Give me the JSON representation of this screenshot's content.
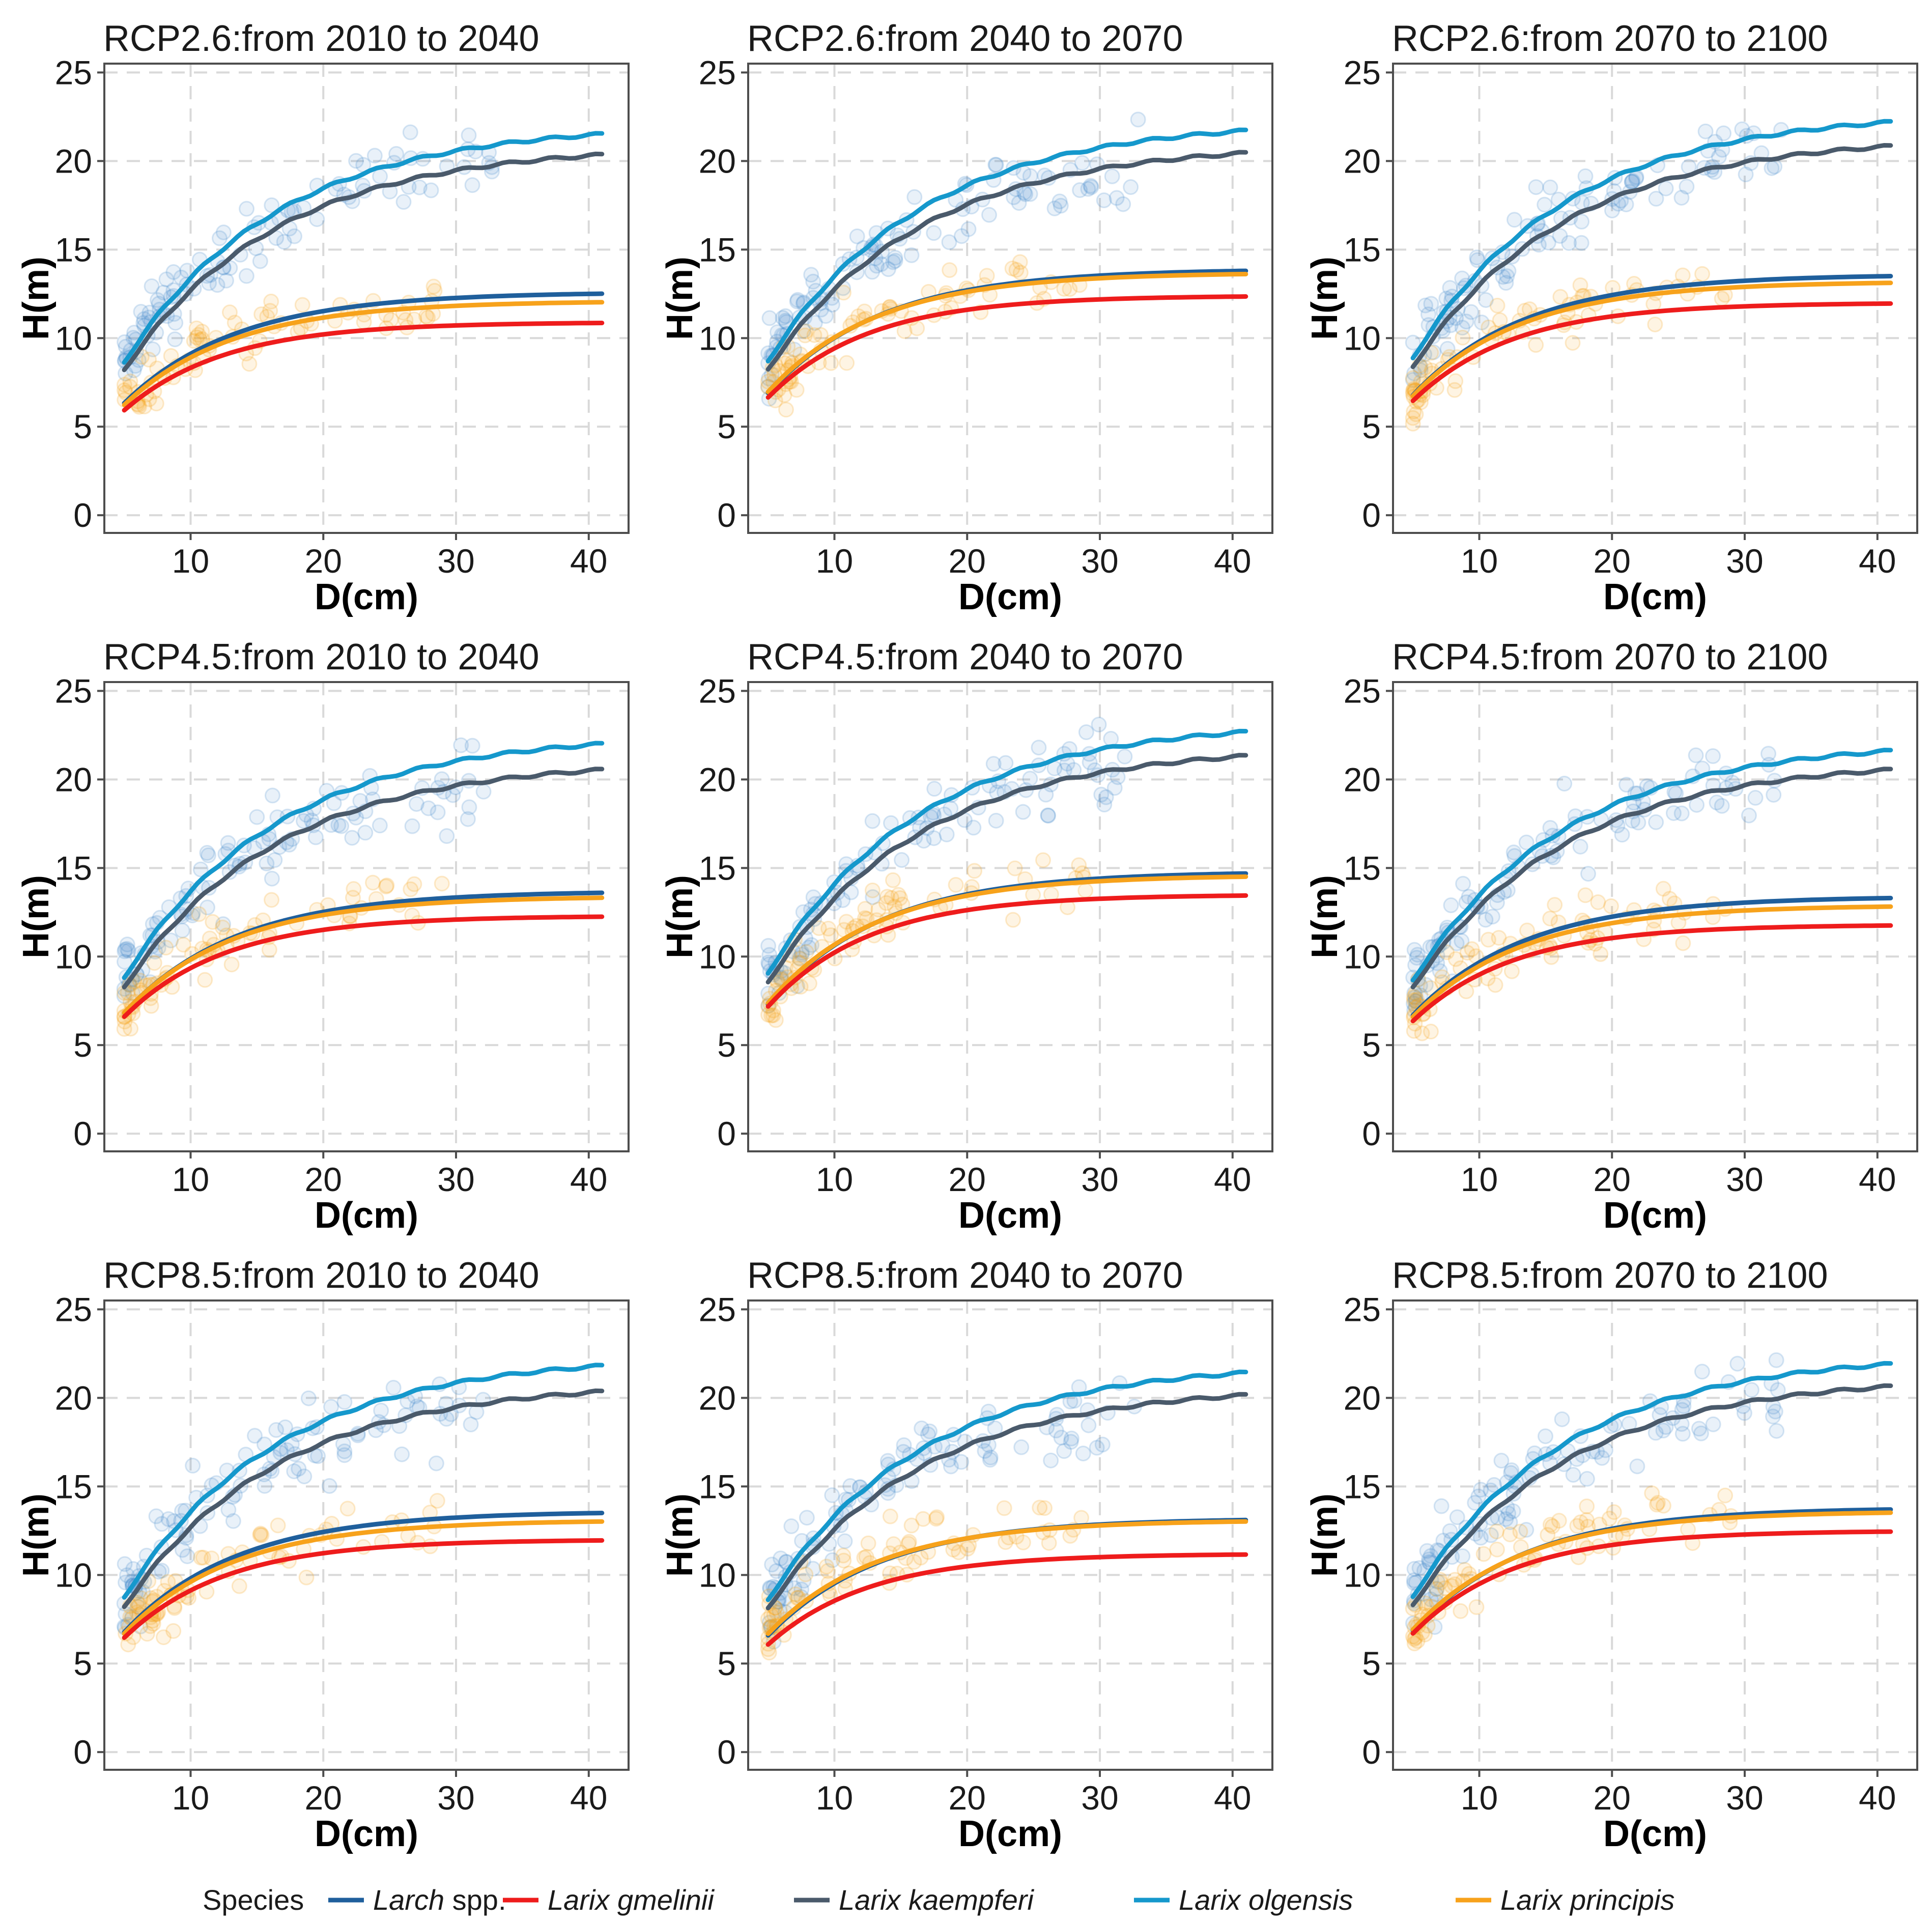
{
  "legend": {
    "title": "Species",
    "items": [
      {
        "key": "larch",
        "label": "Larch",
        "suffix": " spp.",
        "italic_label": true,
        "color": "#1f5f9c"
      },
      {
        "key": "gmelinii",
        "label": "Larix gmelinii",
        "suffix": "",
        "italic_label": true,
        "color": "#ee1c1c"
      },
      {
        "key": "kaempferi",
        "label": "Larix kaempferi",
        "suffix": "",
        "italic_label": true,
        "color": "#4a5a6b"
      },
      {
        "key": "olgensis",
        "label": "Larix olgensis",
        "suffix": "",
        "italic_label": true,
        "color": "#1598cc"
      },
      {
        "key": "principis",
        "label": "Larix principis",
        "suffix": "",
        "italic_label": true,
        "color": "#f7a21b"
      }
    ]
  },
  "chart_data": [
    {
      "type": "line",
      "title": "RCP2.6:from 2010 to 2040",
      "xlabel": "D(cm)",
      "ylabel": "H(m)",
      "xlim": [
        3.5,
        43
      ],
      "ylim": [
        -1,
        25.5
      ],
      "xticks": [
        10,
        20,
        30,
        40
      ],
      "yticks": [
        0,
        5,
        10,
        15,
        20,
        25
      ],
      "grid": true,
      "asymptotes": {
        "olgensis": 22.1,
        "kaempferi": 20.9,
        "larch": 12.6,
        "principis": 12.1,
        "gmelinii": 10.9
      }
    },
    {
      "type": "line",
      "title": "RCP2.6:from 2040 to 2070",
      "xlabel": "D(cm)",
      "ylabel": "H(m)",
      "xlim": [
        3.5,
        43
      ],
      "ylim": [
        -1,
        25.5
      ],
      "xticks": [
        10,
        20,
        30,
        40
      ],
      "yticks": [
        0,
        5,
        10,
        15,
        20,
        25
      ],
      "grid": true,
      "asymptotes": {
        "olgensis": 22.3,
        "kaempferi": 21.0,
        "larch": 13.9,
        "principis": 13.7,
        "gmelinii": 12.4
      }
    },
    {
      "type": "line",
      "title": "RCP2.6:from 2070 to 2100",
      "xlabel": "D(cm)",
      "ylabel": "H(m)",
      "xlim": [
        3.5,
        43
      ],
      "ylim": [
        -1,
        25.5
      ],
      "xticks": [
        10,
        20,
        30,
        40
      ],
      "yticks": [
        0,
        5,
        10,
        15,
        20,
        25
      ],
      "grid": true,
      "asymptotes": {
        "olgensis": 22.8,
        "kaempferi": 21.4,
        "larch": 13.6,
        "principis": 13.2,
        "gmelinii": 12.0
      }
    },
    {
      "type": "line",
      "title": "RCP4.5:from 2010 to 2040",
      "xlabel": "D(cm)",
      "ylabel": "H(m)",
      "xlim": [
        3.5,
        43
      ],
      "ylim": [
        -1,
        25.5
      ],
      "xticks": [
        10,
        20,
        30,
        40
      ],
      "yticks": [
        0,
        5,
        10,
        15,
        20,
        25
      ],
      "grid": true,
      "asymptotes": {
        "olgensis": 22.6,
        "kaempferi": 21.1,
        "larch": 13.7,
        "principis": 13.4,
        "gmelinii": 12.3
      }
    },
    {
      "type": "line",
      "title": "RCP4.5:from 2040 to 2070",
      "xlabel": "D(cm)",
      "ylabel": "H(m)",
      "xlim": [
        3.5,
        43
      ],
      "ylim": [
        -1,
        25.5
      ],
      "xticks": [
        10,
        20,
        30,
        40
      ],
      "yticks": [
        0,
        5,
        10,
        15,
        20,
        25
      ],
      "grid": true,
      "asymptotes": {
        "olgensis": 23.3,
        "kaempferi": 21.9,
        "larch": 14.8,
        "principis": 14.6,
        "gmelinii": 13.5
      }
    },
    {
      "type": "line",
      "title": "RCP4.5:from 2070 to 2100",
      "xlabel": "D(cm)",
      "ylabel": "H(m)",
      "xlim": [
        3.5,
        43
      ],
      "ylim": [
        -1,
        25.5
      ],
      "xticks": [
        10,
        20,
        30,
        40
      ],
      "yticks": [
        0,
        5,
        10,
        15,
        20,
        25
      ],
      "grid": true,
      "asymptotes": {
        "olgensis": 22.2,
        "kaempferi": 21.1,
        "larch": 13.4,
        "principis": 12.9,
        "gmelinii": 11.8
      }
    },
    {
      "type": "line",
      "title": "RCP8.5:from 2010 to 2040",
      "xlabel": "D(cm)",
      "ylabel": "H(m)",
      "xlim": [
        3.5,
        43
      ],
      "ylim": [
        -1,
        25.5
      ],
      "xticks": [
        10,
        20,
        30,
        40
      ],
      "yticks": [
        0,
        5,
        10,
        15,
        20,
        25
      ],
      "grid": true,
      "asymptotes": {
        "olgensis": 22.4,
        "kaempferi": 20.9,
        "larch": 13.6,
        "principis": 13.1,
        "gmelinii": 12.0
      }
    },
    {
      "type": "line",
      "title": "RCP8.5:from 2040 to 2070",
      "xlabel": "D(cm)",
      "ylabel": "H(m)",
      "xlim": [
        3.5,
        43
      ],
      "ylim": [
        -1,
        25.5
      ],
      "xticks": [
        10,
        20,
        30,
        40
      ],
      "yticks": [
        0,
        5,
        10,
        15,
        20,
        25
      ],
      "grid": true,
      "asymptotes": {
        "olgensis": 22.0,
        "kaempferi": 20.7,
        "larch": 13.2,
        "principis": 13.1,
        "gmelinii": 11.2
      }
    },
    {
      "type": "line",
      "title": "RCP8.5:from 2070 to 2100",
      "xlabel": "D(cm)",
      "ylabel": "H(m)",
      "xlim": [
        3.5,
        43
      ],
      "ylim": [
        -1,
        25.5
      ],
      "xticks": [
        10,
        20,
        30,
        40
      ],
      "yticks": [
        0,
        5,
        10,
        15,
        20,
        25
      ],
      "grid": true,
      "asymptotes": {
        "olgensis": 22.5,
        "kaempferi": 21.2,
        "larch": 13.8,
        "principis": 13.6,
        "gmelinii": 12.5
      }
    }
  ]
}
